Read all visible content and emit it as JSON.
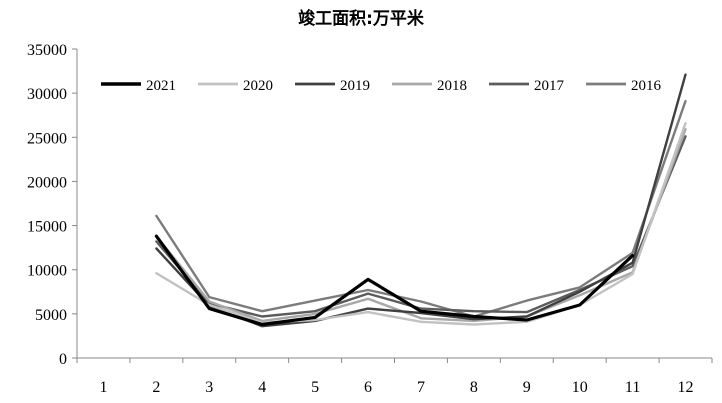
{
  "chart_data": {
    "type": "line",
    "title": "竣工面积:万平米",
    "xlabel": "",
    "ylabel": "",
    "categories": [
      "1",
      "2",
      "3",
      "4",
      "5",
      "6",
      "7",
      "8",
      "9",
      "10",
      "11",
      "12"
    ],
    "y_ticks": [
      "0",
      "5000",
      "10000",
      "15000",
      "20000",
      "25000",
      "30000",
      "35000"
    ],
    "ylim": [
      0,
      35000
    ],
    "grid": false,
    "legend_position": "top",
    "series": [
      {
        "name": "2021",
        "color": "#000000",
        "stroke_width": 3.2,
        "values": [
          null,
          13800,
          5600,
          3800,
          4600,
          8900,
          5300,
          4700,
          4300,
          6000,
          11600,
          null
        ]
      },
      {
        "name": "2020",
        "color": "#c2c2c2",
        "stroke_width": 2.4,
        "values": [
          null,
          9600,
          6000,
          4000,
          4300,
          5200,
          4100,
          3800,
          4100,
          6000,
          9500,
          26600
        ]
      },
      {
        "name": "2019",
        "color": "#404040",
        "stroke_width": 2.4,
        "values": [
          null,
          12400,
          5900,
          3600,
          4200,
          5600,
          5100,
          4400,
          4700,
          7500,
          10800,
          32100
        ]
      },
      {
        "name": "2018",
        "color": "#a8a8a8",
        "stroke_width": 2.4,
        "values": [
          null,
          13800,
          6400,
          4200,
          5000,
          6700,
          4500,
          4200,
          4700,
          7100,
          9700,
          25900
        ]
      },
      {
        "name": "2017",
        "color": "#5c5c5c",
        "stroke_width": 2.4,
        "values": [
          null,
          13200,
          6200,
          4700,
          5300,
          7300,
          5600,
          5300,
          5200,
          7700,
          10400,
          25100
        ]
      },
      {
        "name": "2016",
        "color": "#7c7c7c",
        "stroke_width": 2.4,
        "values": [
          null,
          16100,
          6900,
          5300,
          6500,
          7700,
          6400,
          4700,
          6500,
          8000,
          11900,
          29100
        ]
      }
    ]
  }
}
